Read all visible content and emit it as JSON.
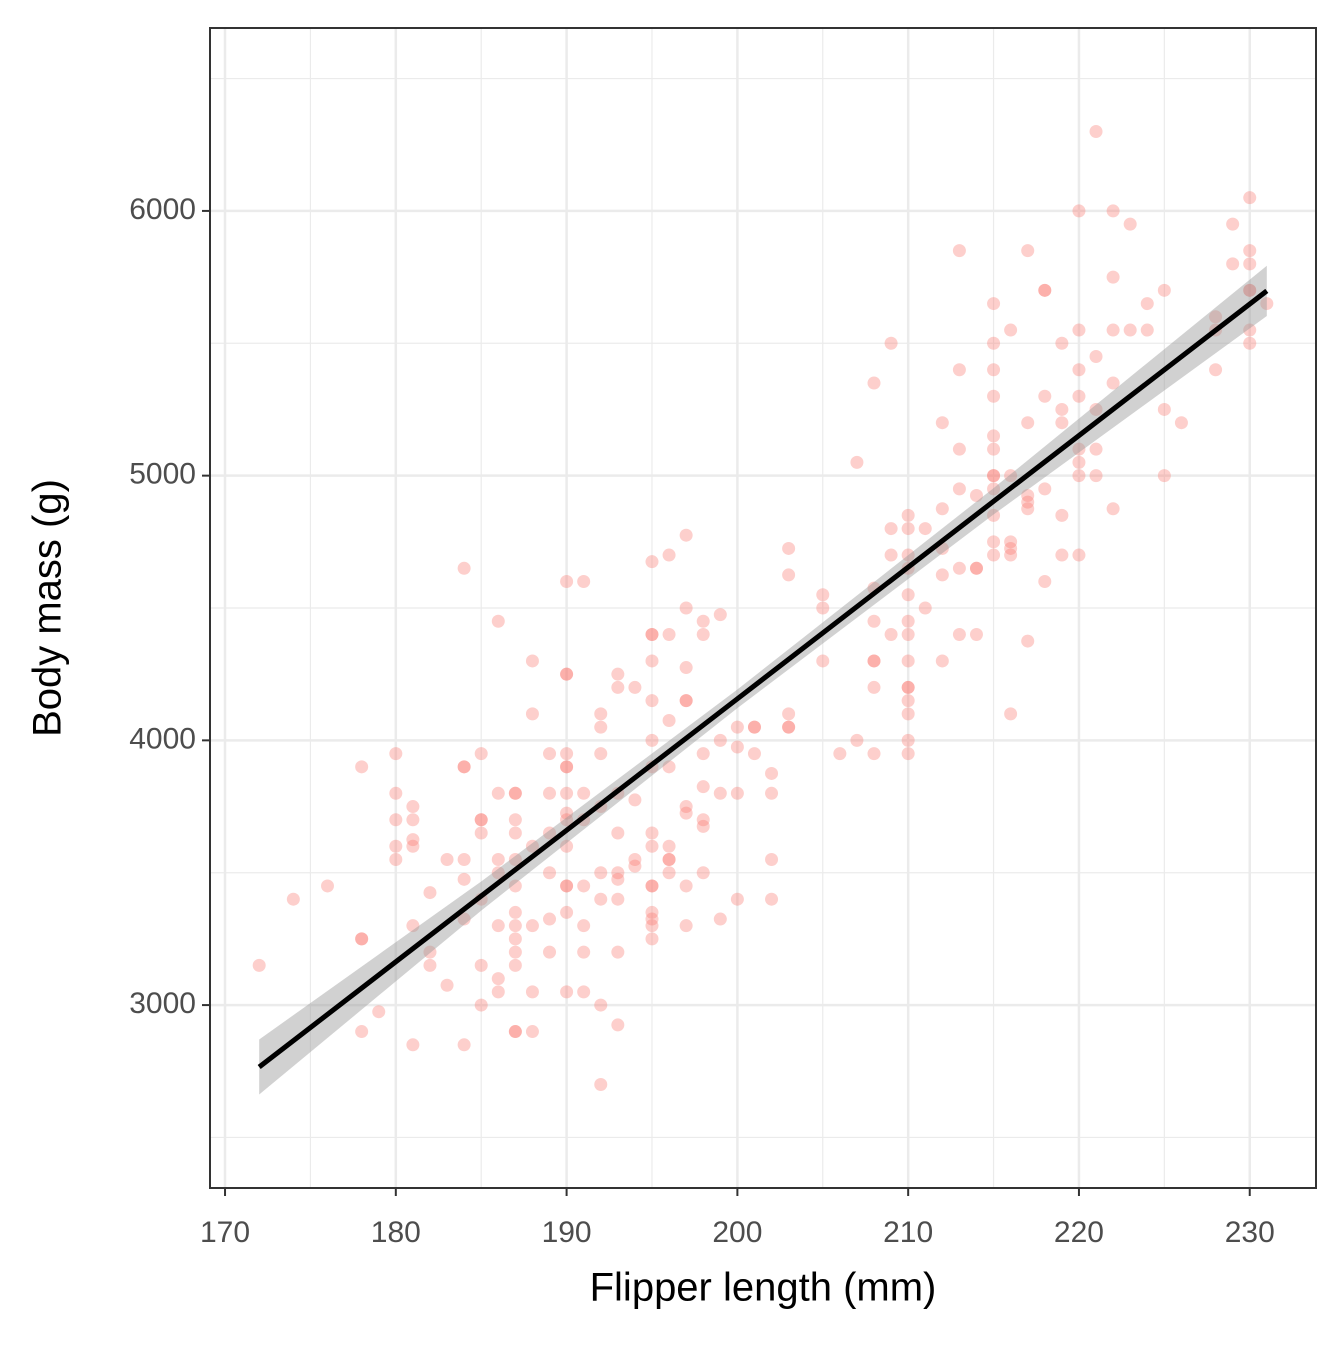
{
  "chart_data": {
    "type": "scatter",
    "x_label": "Flipper length (mm)",
    "y_label": "Body mass (g)",
    "xlim": [
      169.12,
      233.88
    ],
    "ylim": [
      2309,
      6691
    ],
    "xticks": [
      170,
      180,
      190,
      200,
      210,
      220,
      230
    ],
    "yticks": [
      3000,
      4000,
      5000,
      6000
    ],
    "x_minor_breaks": [
      175,
      185,
      195,
      205,
      215,
      225
    ],
    "y_minor_breaks": [
      2500,
      3500,
      4500,
      5500,
      6500
    ],
    "grid": true,
    "color": "#F8766D",
    "opacity": 0.35,
    "x": [
      172,
      174,
      176,
      178,
      178,
      178,
      178,
      179,
      180,
      180,
      180,
      180,
      180,
      181,
      181,
      181,
      181,
      181,
      181,
      182,
      182,
      182,
      183,
      183,
      184,
      184,
      184,
      184,
      184,
      184,
      184,
      185,
      185,
      185,
      185,
      185,
      185,
      185,
      186,
      186,
      186,
      186,
      186,
      186,
      186,
      187,
      187,
      187,
      187,
      187,
      187,
      187,
      187,
      187,
      187,
      187,
      187,
      187,
      188,
      188,
      188,
      188,
      188,
      188,
      189,
      189,
      189,
      189,
      189,
      189,
      190,
      190,
      190,
      190,
      190,
      190,
      190,
      190,
      190,
      190,
      190,
      190,
      190,
      190,
      191,
      191,
      191,
      191,
      191,
      191,
      191,
      192,
      192,
      192,
      192,
      192,
      192,
      192,
      192,
      193,
      193,
      193,
      193,
      193,
      193,
      193,
      193,
      193,
      194,
      194,
      194,
      194,
      195,
      195,
      195,
      195,
      195,
      195,
      195,
      195,
      195,
      195,
      195,
      195,
      195,
      195,
      195,
      196,
      196,
      196,
      196,
      196,
      196,
      196,
      196,
      197,
      197,
      197,
      197,
      197,
      197,
      197,
      197,
      197,
      198,
      198,
      198,
      198,
      198,
      198,
      198,
      199,
      199,
      199,
      199,
      200,
      200,
      200,
      200,
      201,
      201,
      201,
      202,
      202,
      202,
      202,
      203,
      203,
      203,
      203,
      203,
      205,
      205,
      205,
      206,
      207,
      207,
      208,
      208,
      208,
      208,
      208,
      208,
      208,
      209,
      209,
      209,
      209,
      210,
      210,
      210,
      210,
      210,
      210,
      210,
      210,
      210,
      210,
      210,
      210,
      210,
      210,
      211,
      211,
      212,
      212,
      212,
      212,
      212,
      213,
      213,
      213,
      213,
      213,
      213,
      214,
      214,
      214,
      214,
      215,
      215,
      215,
      215,
      215,
      215,
      215,
      215,
      215,
      215,
      215,
      215,
      216,
      216,
      216,
      216,
      216,
      216,
      217,
      217,
      217,
      217,
      217,
      217,
      218,
      218,
      218,
      218,
      218,
      219,
      219,
      219,
      219,
      219,
      220,
      220,
      220,
      220,
      220,
      220,
      220,
      220,
      221,
      221,
      221,
      221,
      221,
      222,
      222,
      222,
      222,
      222,
      223,
      223,
      224,
      224,
      225,
      225,
      225,
      226,
      228,
      228,
      228,
      229,
      229,
      230,
      230,
      230,
      230,
      230,
      230,
      230,
      231
    ],
    "values": [
      3150,
      3400,
      3450,
      3900,
      3250,
      3250,
      2900,
      2975,
      3950,
      3800,
      3700,
      3600,
      3550,
      3750,
      3700,
      3625,
      3600,
      3300,
      2850,
      3425,
      3200,
      3150,
      3550,
      3075,
      4650,
      3900,
      3900,
      3550,
      3475,
      3325,
      2850,
      3950,
      3700,
      3650,
      3700,
      3400,
      3150,
      3000,
      4450,
      3800,
      3550,
      3500,
      3300,
      3100,
      3050,
      3800,
      3800,
      3700,
      3650,
      3550,
      3450,
      3350,
      3300,
      3250,
      3200,
      3150,
      2900,
      2900,
      4300,
      4100,
      3600,
      3300,
      3050,
      2900,
      3950,
      3800,
      3650,
      3500,
      3325,
      3200,
      4600,
      4250,
      4250,
      3950,
      3900,
      3900,
      3800,
      3725,
      3700,
      3600,
      3450,
      3450,
      3350,
      3050,
      4600,
      3800,
      3700,
      3450,
      3300,
      3200,
      3050,
      4100,
      4050,
      3950,
      3750,
      3500,
      3400,
      3000,
      2700,
      4250,
      4200,
      3800,
      3650,
      3500,
      3475,
      3400,
      3200,
      2925,
      4200,
      3775,
      3550,
      3525,
      4675,
      4400,
      4400,
      4300,
      4150,
      4000,
      3900,
      3650,
      3600,
      3450,
      3450,
      3350,
      3325,
      3300,
      3250,
      4700,
      4400,
      4075,
      3900,
      3600,
      3550,
      3550,
      3500,
      4775,
      4500,
      4275,
      4150,
      4150,
      3750,
      3725,
      3450,
      3300,
      4450,
      4400,
      3950,
      3825,
      3700,
      3675,
      3500,
      4475,
      4000,
      3800,
      3325,
      4050,
      3975,
      3800,
      3400,
      4050,
      4050,
      3950,
      3875,
      3800,
      3550,
      3400,
      4725,
      4625,
      4100,
      4050,
      4050,
      4550,
      4500,
      4300,
      3950,
      5050,
      4000,
      5350,
      4575,
      4450,
      4300,
      4300,
      4200,
      3950,
      5500,
      4800,
      4700,
      4400,
      4850,
      4800,
      4700,
      4650,
      4550,
      4450,
      4400,
      4300,
      4200,
      4200,
      4150,
      4100,
      4000,
      3950,
      4800,
      4500,
      5200,
      4875,
      4725,
      4625,
      4300,
      5850,
      5400,
      5100,
      4950,
      4650,
      4400,
      4925,
      4650,
      4650,
      4400,
      5650,
      5500,
      5400,
      5300,
      5150,
      5100,
      5000,
      5000,
      4950,
      4850,
      4750,
      4700,
      5550,
      5000,
      4750,
      4725,
      4700,
      4100,
      5850,
      5200,
      4925,
      4900,
      4875,
      4375,
      5700,
      5700,
      5300,
      4950,
      4600,
      5500,
      5250,
      5200,
      4850,
      4700,
      6000,
      5550,
      5400,
      5300,
      5100,
      5050,
      5000,
      4700,
      6300,
      5450,
      5250,
      5100,
      5000,
      6000,
      5750,
      5550,
      5350,
      4875,
      5950,
      5550,
      5650,
      5550,
      5700,
      5250,
      5000,
      5200,
      5600,
      5550,
      5400,
      5950,
      5800,
      6050,
      5850,
      5800,
      5700,
      5700,
      5550,
      5500,
      5650
    ],
    "smooth": {
      "x": [
        172,
        185,
        200,
        215,
        231
      ],
      "values": [
        2766,
        3412,
        4157,
        4903,
        5698
      ],
      "lower": [
        2662,
        3357,
        4122,
        4853,
        5603
      ],
      "upper": [
        2870,
        3467,
        4192,
        4953,
        5793
      ],
      "color": "#000000",
      "band_color": "#999999"
    }
  }
}
